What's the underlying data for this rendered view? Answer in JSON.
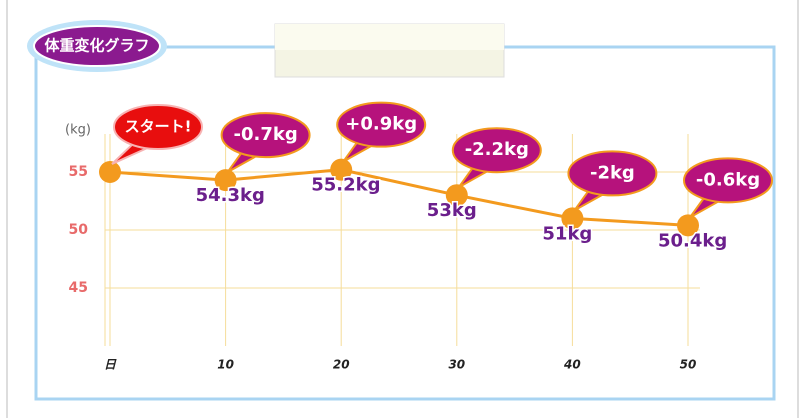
{
  "chart_data": {
    "type": "line",
    "title": "体重変化グラフ",
    "y_label": "(kg)",
    "categories": [
      "日",
      "10",
      "20",
      "30",
      "40",
      "50"
    ],
    "values": [
      55,
      54.3,
      55.2,
      53,
      51,
      50.4
    ],
    "value_labels": [
      null,
      "54.3kg",
      "55.2kg",
      "53kg",
      "51kg",
      "50.4kg"
    ],
    "callouts": [
      "スタート!",
      "-0.7kg",
      "+0.9kg",
      "-2.2kg",
      "-2kg",
      "-0.6kg"
    ],
    "color": "#f39a1e",
    "ylim": [
      40,
      60
    ],
    "yticks": [
      45,
      50,
      55
    ],
    "grid": true
  }
}
